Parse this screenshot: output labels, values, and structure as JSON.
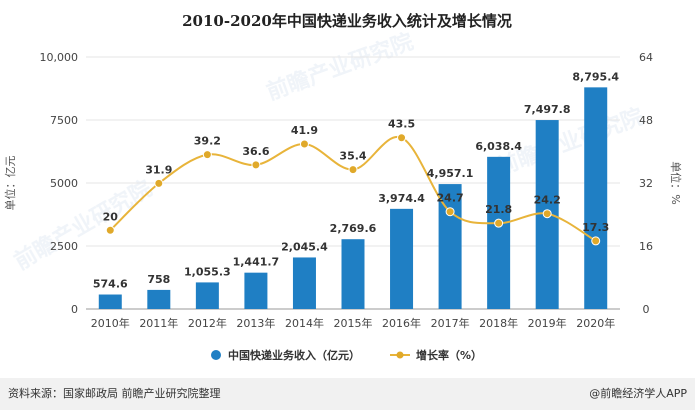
{
  "chart_data": {
    "type": "bar",
    "title": "2010-2020年中国快递业务收入统计及增长情况",
    "categories": [
      "2010年",
      "2011年",
      "2012年",
      "2013年",
      "2014年",
      "2015年",
      "2016年",
      "2017年",
      "2018年",
      "2019年",
      "2020年"
    ],
    "series": [
      {
        "name": "中国快递业务收入（亿元）",
        "type": "bar",
        "axis": "left",
        "values": [
          574.6,
          758,
          1055.3,
          1441.7,
          2045.4,
          2769.6,
          3974.4,
          4957.1,
          6038.4,
          7497.8,
          8795.4
        ],
        "labels": [
          "574.6",
          "758",
          "1,055.3",
          "1,441.7",
          "2,045.4",
          "2,769.6",
          "3,974.4",
          "4,957.1",
          "6,038.4",
          "7,497.8",
          "8,795.4"
        ]
      },
      {
        "name": "增长率（%）",
        "type": "line",
        "axis": "right",
        "values": [
          20,
          31.9,
          39.2,
          36.6,
          41.9,
          35.4,
          43.5,
          24.7,
          21.8,
          24.2,
          17.3
        ],
        "labels": [
          "20",
          "31.9",
          "39.2",
          "36.6",
          "41.9",
          "35.4",
          "43.5",
          "24.7",
          "21.8",
          "24.2",
          "17.3"
        ]
      }
    ],
    "ylabel": "单位：亿元",
    "ylabel_right": "单位：%",
    "ylim": [
      0,
      10000
    ],
    "ylim_right": [
      0,
      64
    ],
    "yticks": [
      "0",
      "2500",
      "5000",
      "7500",
      "10,000"
    ],
    "yticks_right": [
      "0",
      "16",
      "32",
      "48",
      "64"
    ],
    "grid": true,
    "legend": "bottom-center"
  },
  "colors": {
    "bar": "#1f7fc4",
    "line": "#e8b43a",
    "marker": "#e0a92a",
    "footer_band": "#f1f1f1"
  },
  "footer": {
    "source": "资料来源：国家邮政局 前瞻产业研究院整理",
    "credit": "@前瞻经济学人APP"
  },
  "watermark": {
    "brand": "前瞻产业研究院"
  }
}
